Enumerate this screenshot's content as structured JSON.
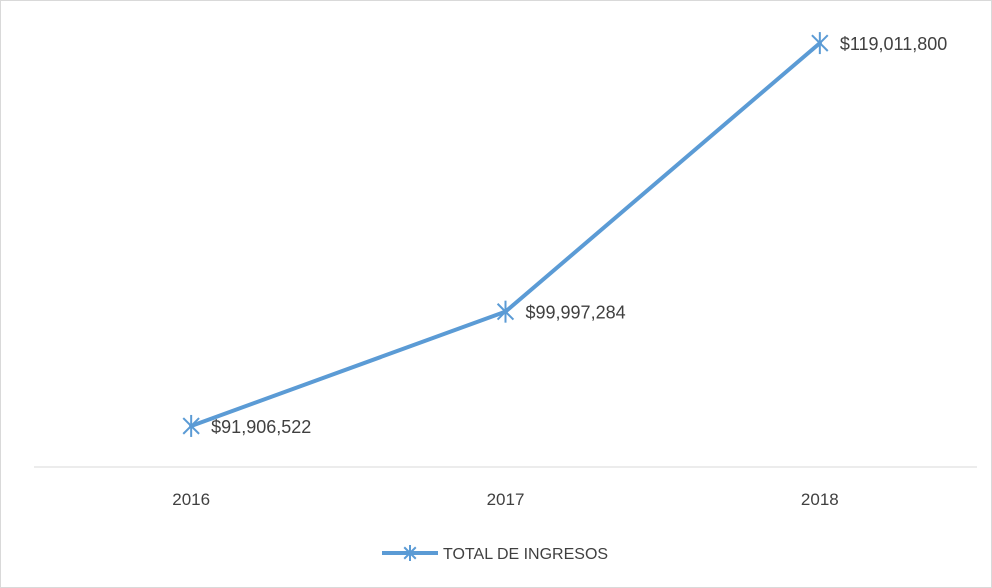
{
  "chart_data": {
    "type": "line",
    "categories": [
      "2016",
      "2017",
      "2018"
    ],
    "series": [
      {
        "name": "TOTAL DE INGRESOS",
        "values": [
          91906522,
          99997284,
          119011800
        ],
        "labels": [
          "$91,906,522",
          "$99,997,284",
          "$119,011,800"
        ],
        "color": "#5b9bd5",
        "marker": "asterisk"
      }
    ],
    "title": "",
    "xlabel": "",
    "ylabel": "",
    "ylim": [
      89000000,
      121000000
    ],
    "grid": false,
    "legend_position": "bottom"
  }
}
